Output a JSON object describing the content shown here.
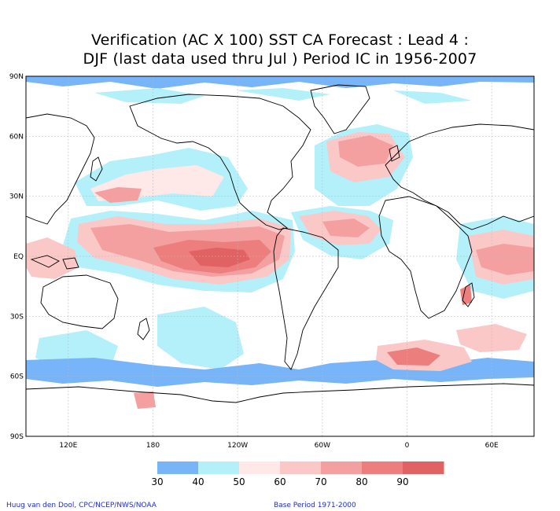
{
  "title": {
    "line1": "Verification (AC X 100) SST CA Forecast : Lead 4 :",
    "line2": "DJF (last data used thru Jul ) Period IC in 1956-2007"
  },
  "map": {
    "projection": "equirectangular",
    "lon_range": [
      90,
      450
    ],
    "lat_range": [
      -90,
      90
    ],
    "lat_labels": [
      "90N",
      "60N",
      "30N",
      "EQ",
      "30S",
      "60S",
      "90S"
    ],
    "lat_values": [
      90,
      60,
      30,
      0,
      -30,
      -60,
      -90
    ],
    "lon_labels": [
      "120E",
      "180",
      "120W",
      "60W",
      "0",
      "60E"
    ],
    "lon_values": [
      120,
      180,
      240,
      300,
      360,
      420
    ],
    "grid": true
  },
  "colorbar": {
    "levels": [
      "30",
      "40",
      "50",
      "60",
      "70",
      "80",
      "90"
    ],
    "colors": [
      "#78b4f8",
      "#b4f0fa",
      "#ffe8e8",
      "#fbc8c8",
      "#f4a0a0",
      "#ec7e7e",
      "#e06262"
    ]
  },
  "footer": {
    "left": "Huug van den Dool, CPC/NCEP/NWS/NOAA",
    "right": "Base Period 1971-2000"
  }
}
